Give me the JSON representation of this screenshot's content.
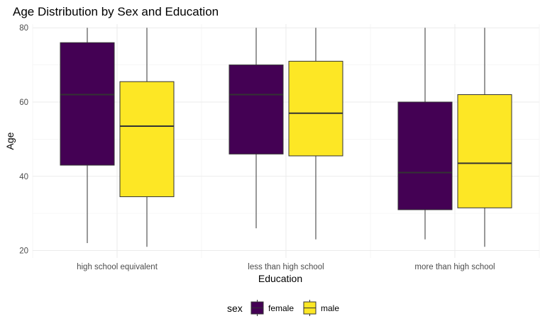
{
  "chart_data": {
    "type": "boxplot",
    "title": "Age Distribution by Sex and Education",
    "xlabel": "Education",
    "ylabel": "Age",
    "categories": [
      "high school equivalent",
      "less than high school",
      "more than high school"
    ],
    "ylim": [
      18,
      81
    ],
    "yticks": [
      20,
      40,
      60,
      80
    ],
    "grid": true,
    "legend": {
      "title": "sex",
      "position": "bottom"
    },
    "series": [
      {
        "name": "female",
        "color": "#440154",
        "boxes": [
          {
            "min": 22,
            "q1": 43,
            "median": 62,
            "q3": 76,
            "max": 80
          },
          {
            "min": 26,
            "q1": 46,
            "median": 62,
            "q3": 70,
            "max": 80
          },
          {
            "min": 23,
            "q1": 31,
            "median": 41,
            "q3": 60,
            "max": 80
          }
        ]
      },
      {
        "name": "male",
        "color": "#FDE725",
        "boxes": [
          {
            "min": 21,
            "q1": 34.5,
            "median": 53.5,
            "q3": 65.5,
            "max": 80
          },
          {
            "min": 23,
            "q1": 45.5,
            "median": 57,
            "q3": 71,
            "max": 80
          },
          {
            "min": 21,
            "q1": 31.5,
            "median": 43.5,
            "q3": 62,
            "max": 80
          }
        ]
      }
    ]
  }
}
